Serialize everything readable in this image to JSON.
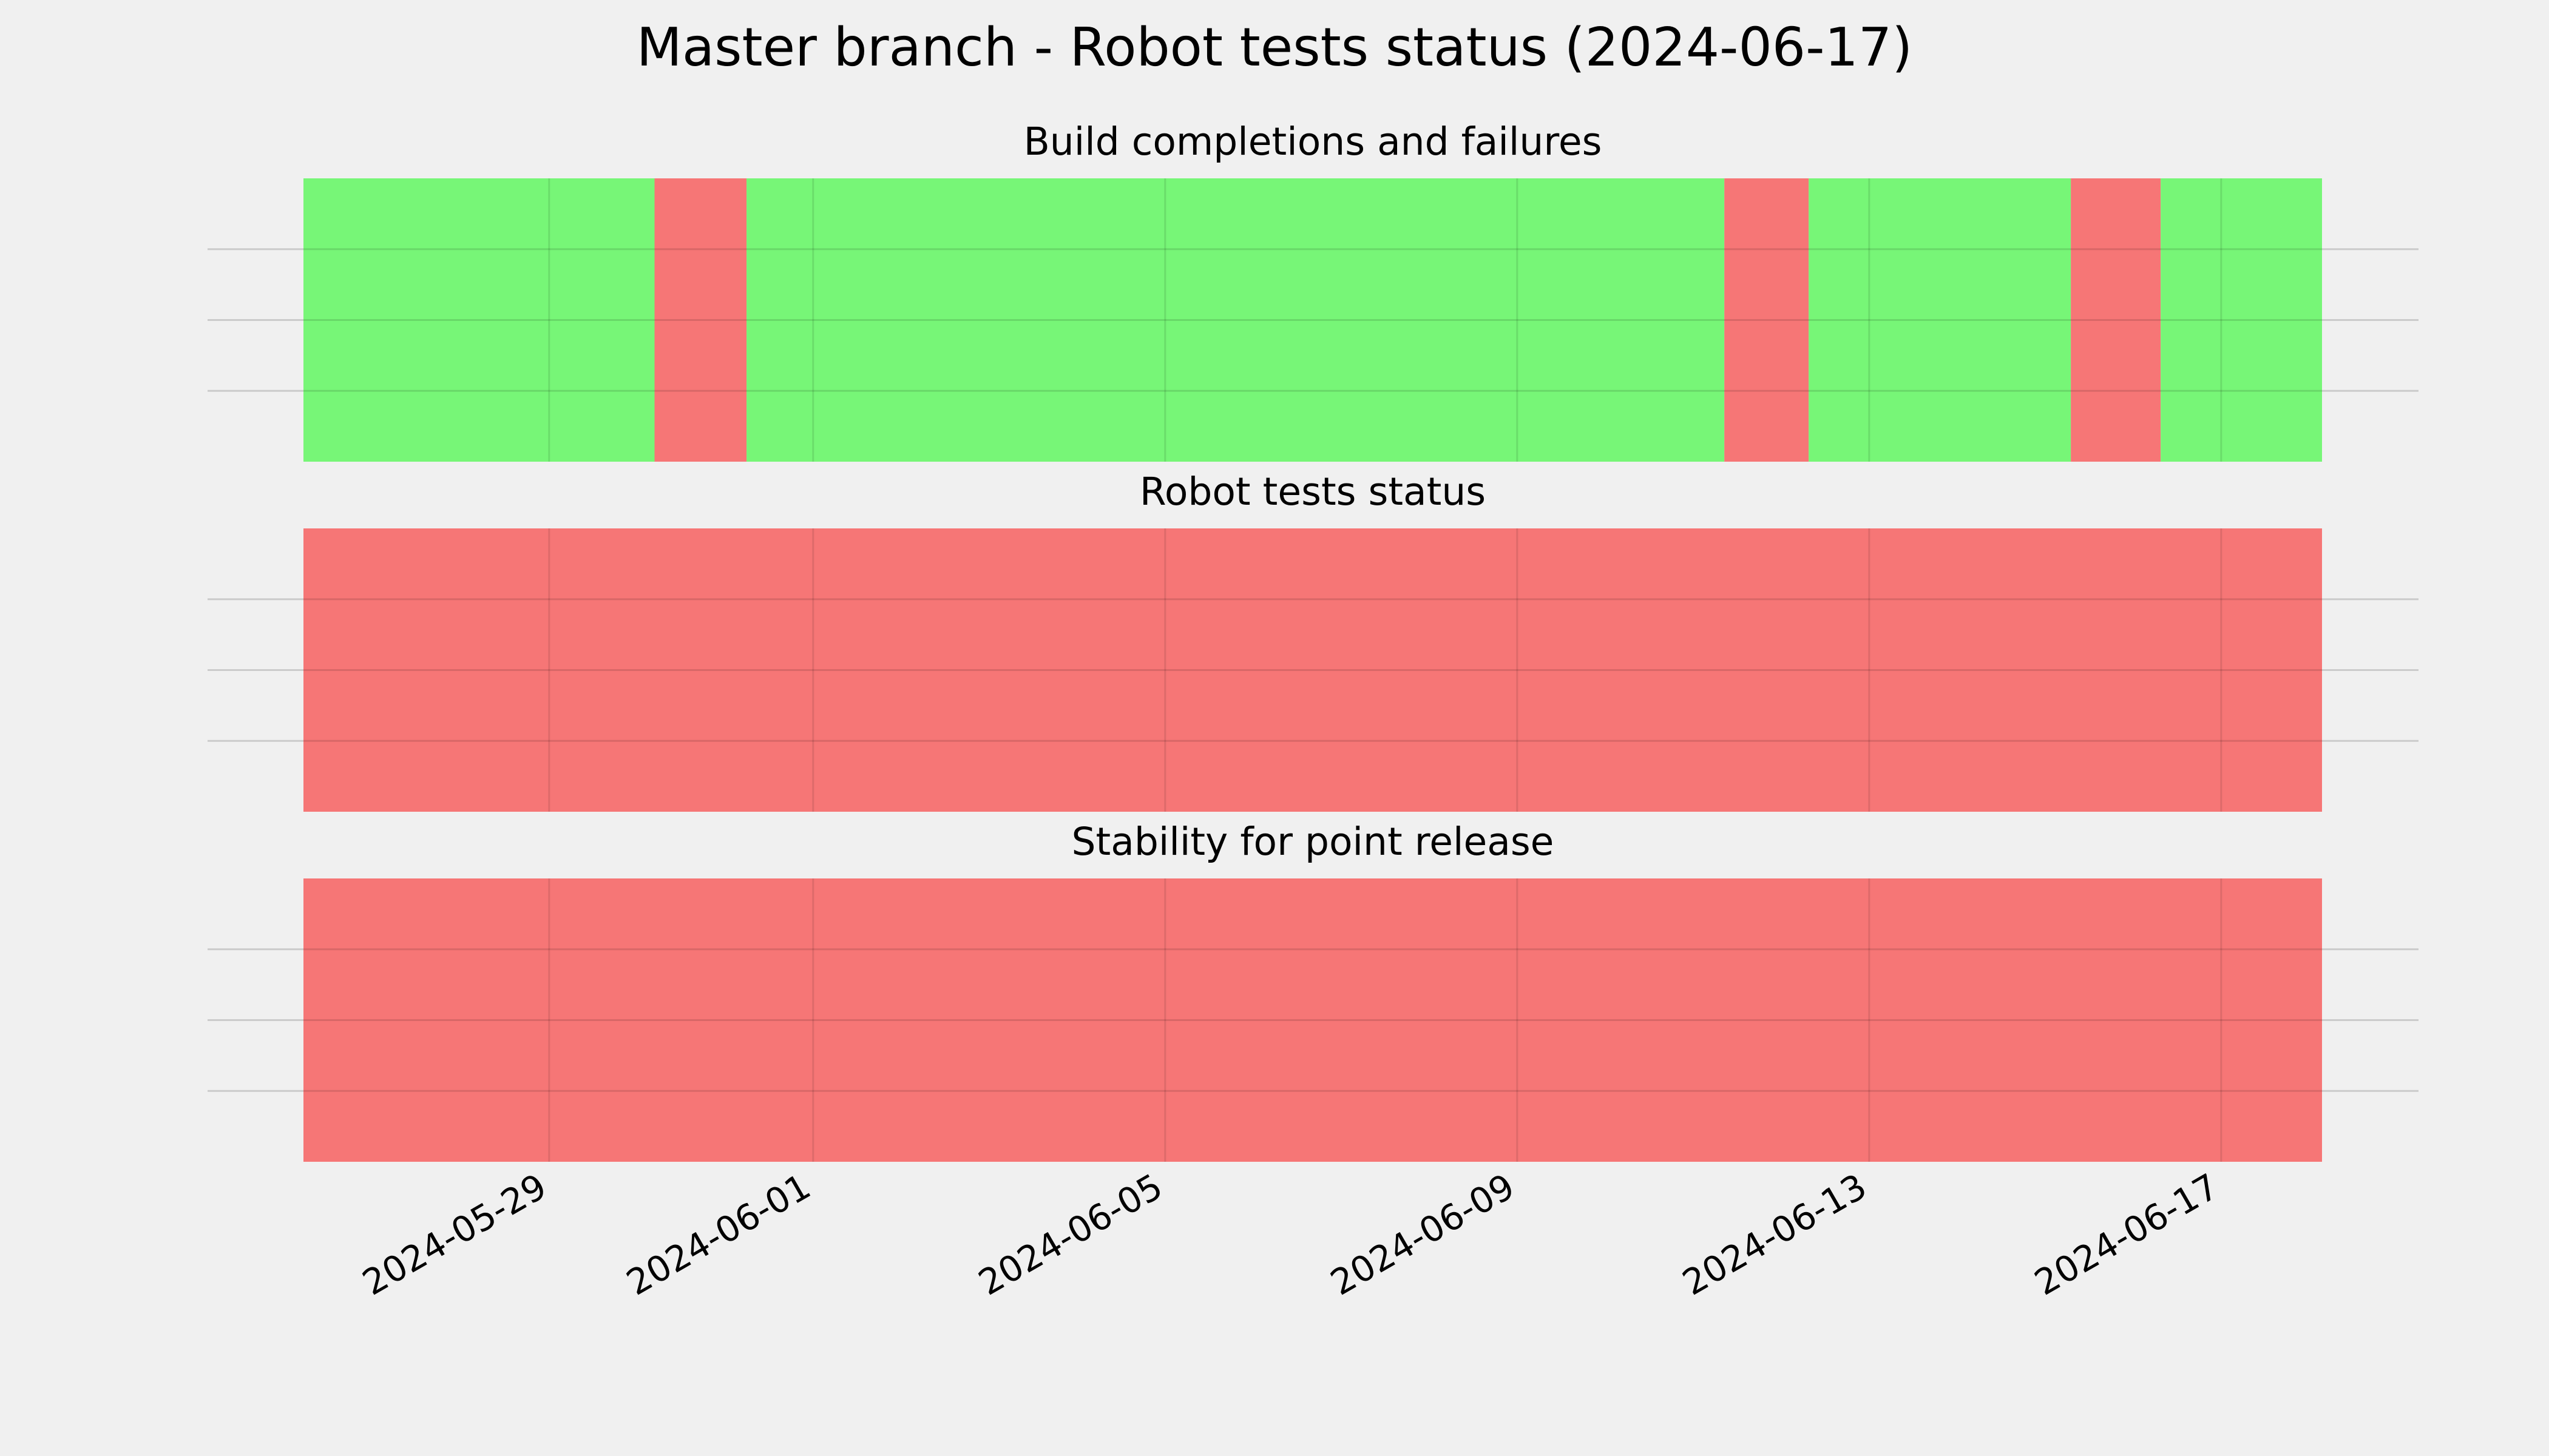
{
  "chart_data": {
    "type": "timeline",
    "title": "Master branch - Robot tests status (2024-06-17)",
    "x_range": [
      "2024-05-26T05:00",
      "2024-06-18T03:30"
    ],
    "x_ticks": [
      "2024-05-29",
      "2024-06-01",
      "2024-06-05",
      "2024-06-09",
      "2024-06-13",
      "2024-06-17"
    ],
    "grid": true,
    "colors": {
      "pass": "#77f677",
      "fail": "#f67676",
      "background": "#f0f0f0"
    },
    "panels": [
      {
        "title": "Build completions and failures",
        "segments": [
          {
            "start": "2024-05-26T05:00",
            "end": "2024-05-30T04:45",
            "status": "pass"
          },
          {
            "start": "2024-05-30T04:45",
            "end": "2024-05-31T05:50",
            "status": "fail"
          },
          {
            "start": "2024-05-31T05:50",
            "end": "2024-06-11T08:30",
            "status": "pass"
          },
          {
            "start": "2024-06-11T08:30",
            "end": "2024-06-12T07:30",
            "status": "fail"
          },
          {
            "start": "2024-06-12T07:30",
            "end": "2024-06-15T07:00",
            "status": "pass"
          },
          {
            "start": "2024-06-15T07:00",
            "end": "2024-06-16T07:30",
            "status": "fail"
          },
          {
            "start": "2024-06-16T07:30",
            "end": "2024-06-18T03:30",
            "status": "pass"
          }
        ]
      },
      {
        "title": "Robot tests status",
        "segments": [
          {
            "start": "2024-05-26T05:00",
            "end": "2024-06-18T03:30",
            "status": "fail"
          }
        ]
      },
      {
        "title": "Stability for point release",
        "segments": [
          {
            "start": "2024-05-26T05:00",
            "end": "2024-06-18T03:30",
            "status": "fail"
          }
        ]
      }
    ]
  }
}
